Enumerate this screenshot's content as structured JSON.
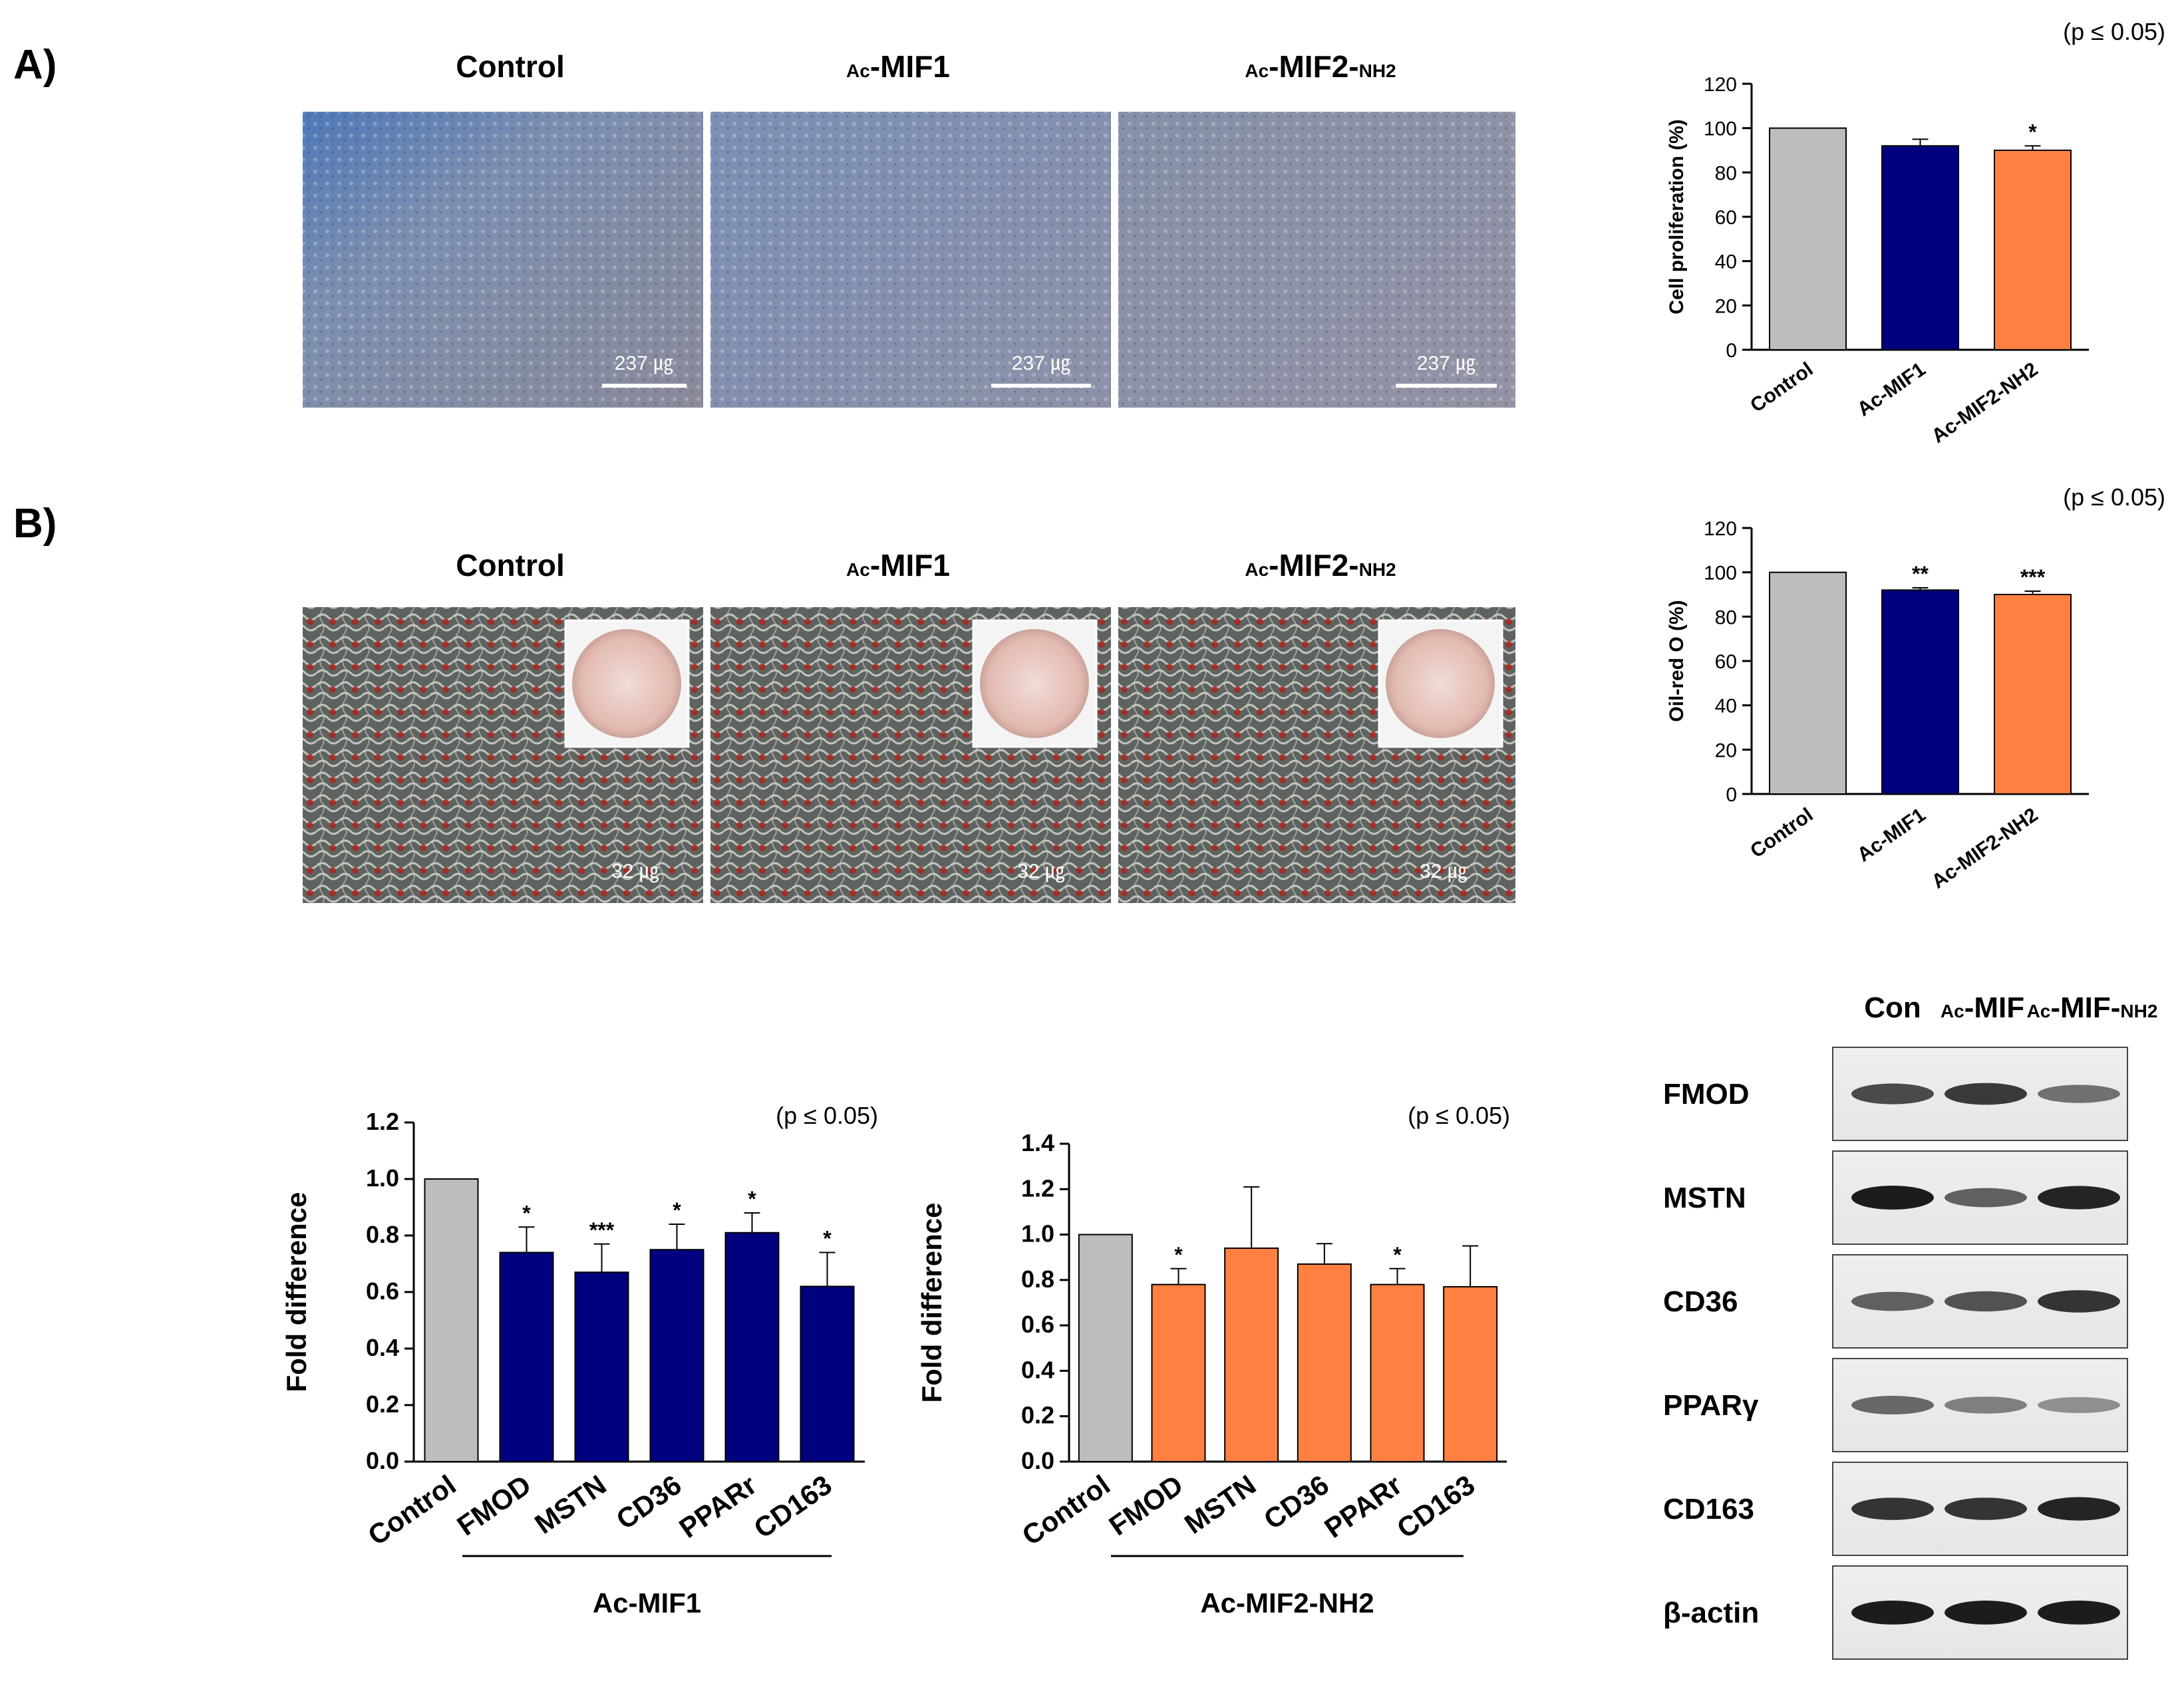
{
  "panel_labels": [
    "A)",
    "B)"
  ],
  "panel_a": {
    "image_titles": [
      {
        "prefix": "",
        "main": "Control",
        "suffix": ""
      },
      {
        "prefix": "Ac",
        "main": "-MIF1",
        "suffix": ""
      },
      {
        "prefix": "Ac",
        "main": "-MIF2-",
        "suffix": "NH2"
      }
    ],
    "scale_bar_label": "237 ㎍",
    "p_value": "(p ≤ 0.05)"
  },
  "panel_b": {
    "image_titles": [
      {
        "prefix": "",
        "main": "Control",
        "suffix": ""
      },
      {
        "prefix": "Ac",
        "main": "-MIF1",
        "suffix": ""
      },
      {
        "prefix": "Ac",
        "main": "-MIF2-",
        "suffix": "NH2"
      }
    ],
    "scale_bar_label": "32 ㎍",
    "p_value": "(p ≤ 0.05)"
  },
  "colors": {
    "control": "#bdbdbd",
    "mif1": "#00007f",
    "mif2": "#ff8040"
  },
  "chart_data": [
    {
      "id": "cell-proliferation",
      "type": "bar",
      "categories": [
        "Control",
        "Ac-MIF1",
        "Ac-MIF2-NH2"
      ],
      "values": [
        100,
        92,
        90
      ],
      "errors": [
        0,
        3,
        2
      ],
      "significance": [
        "",
        "",
        "*"
      ],
      "title": "",
      "xlabel": "",
      "ylabel": "Cell proliferation (%)",
      "ylim": [
        0,
        120
      ],
      "yticks": [
        0,
        20,
        40,
        60,
        80,
        100,
        120
      ],
      "p_value": "(p ≤ 0.05)"
    },
    {
      "id": "oil-red-o",
      "type": "bar",
      "categories": [
        "Control",
        "Ac-MIF1",
        "Ac-MIF2-NH2"
      ],
      "values": [
        100,
        92,
        90
      ],
      "errors": [
        0,
        1,
        1.5
      ],
      "significance": [
        "",
        "**",
        "***"
      ],
      "title": "",
      "xlabel": "",
      "ylabel": "Oil-red O (%)",
      "ylim": [
        0,
        120
      ],
      "yticks": [
        0,
        20,
        40,
        60,
        80,
        100,
        120
      ],
      "p_value": "(p ≤ 0.05)"
    },
    {
      "id": "fold-mif1",
      "type": "bar",
      "categories": [
        "Control",
        "FMOD",
        "MSTN",
        "CD36",
        "PPARr",
        "CD163"
      ],
      "values": [
        1.0,
        0.74,
        0.67,
        0.75,
        0.81,
        0.62
      ],
      "errors": [
        0,
        0.09,
        0.1,
        0.09,
        0.07,
        0.12
      ],
      "significance": [
        "",
        "*",
        "***",
        "*",
        "*",
        "*"
      ],
      "title": "",
      "xlabel": "Ac-MIF1",
      "ylabel": "Fold difference",
      "ylim": [
        0,
        1.2
      ],
      "yticks": [
        "0.0",
        "0.2",
        "0.4",
        "0.6",
        "0.8",
        "1.0",
        "1.2"
      ],
      "p_value": "(p ≤ 0.05)"
    },
    {
      "id": "fold-mif2",
      "type": "bar",
      "categories": [
        "Control",
        "FMOD",
        "MSTN",
        "CD36",
        "PPARr",
        "CD163"
      ],
      "values": [
        1.0,
        0.78,
        0.94,
        0.87,
        0.78,
        0.77
      ],
      "errors": [
        0,
        0.07,
        0.27,
        0.09,
        0.07,
        0.18
      ],
      "significance": [
        "",
        "*",
        "",
        "",
        "*",
        ""
      ],
      "title": "",
      "xlabel": "Ac-MIF2-NH2",
      "ylabel": "Fold difference",
      "ylim": [
        0,
        1.4
      ],
      "yticks": [
        "0.0",
        "0.2",
        "0.4",
        "0.6",
        "0.8",
        "1.0",
        "1.2",
        "1.4"
      ],
      "p_value": "(p ≤ 0.05)"
    }
  ],
  "western_blot": {
    "columns": [
      "Con",
      "Ac-MIF",
      "Ac-MIF-NH2"
    ],
    "column_parts": [
      {
        "prefix": "",
        "main": "Con",
        "suffix": ""
      },
      {
        "prefix": "Ac",
        "main": "-MIF",
        "suffix": ""
      },
      {
        "prefix": "Ac",
        "main": "-MIF-",
        "suffix": "NH2"
      }
    ],
    "rows": [
      "FMOD",
      "MSTN",
      "CD36",
      "PPARγ",
      "CD163",
      "β-actin"
    ]
  }
}
